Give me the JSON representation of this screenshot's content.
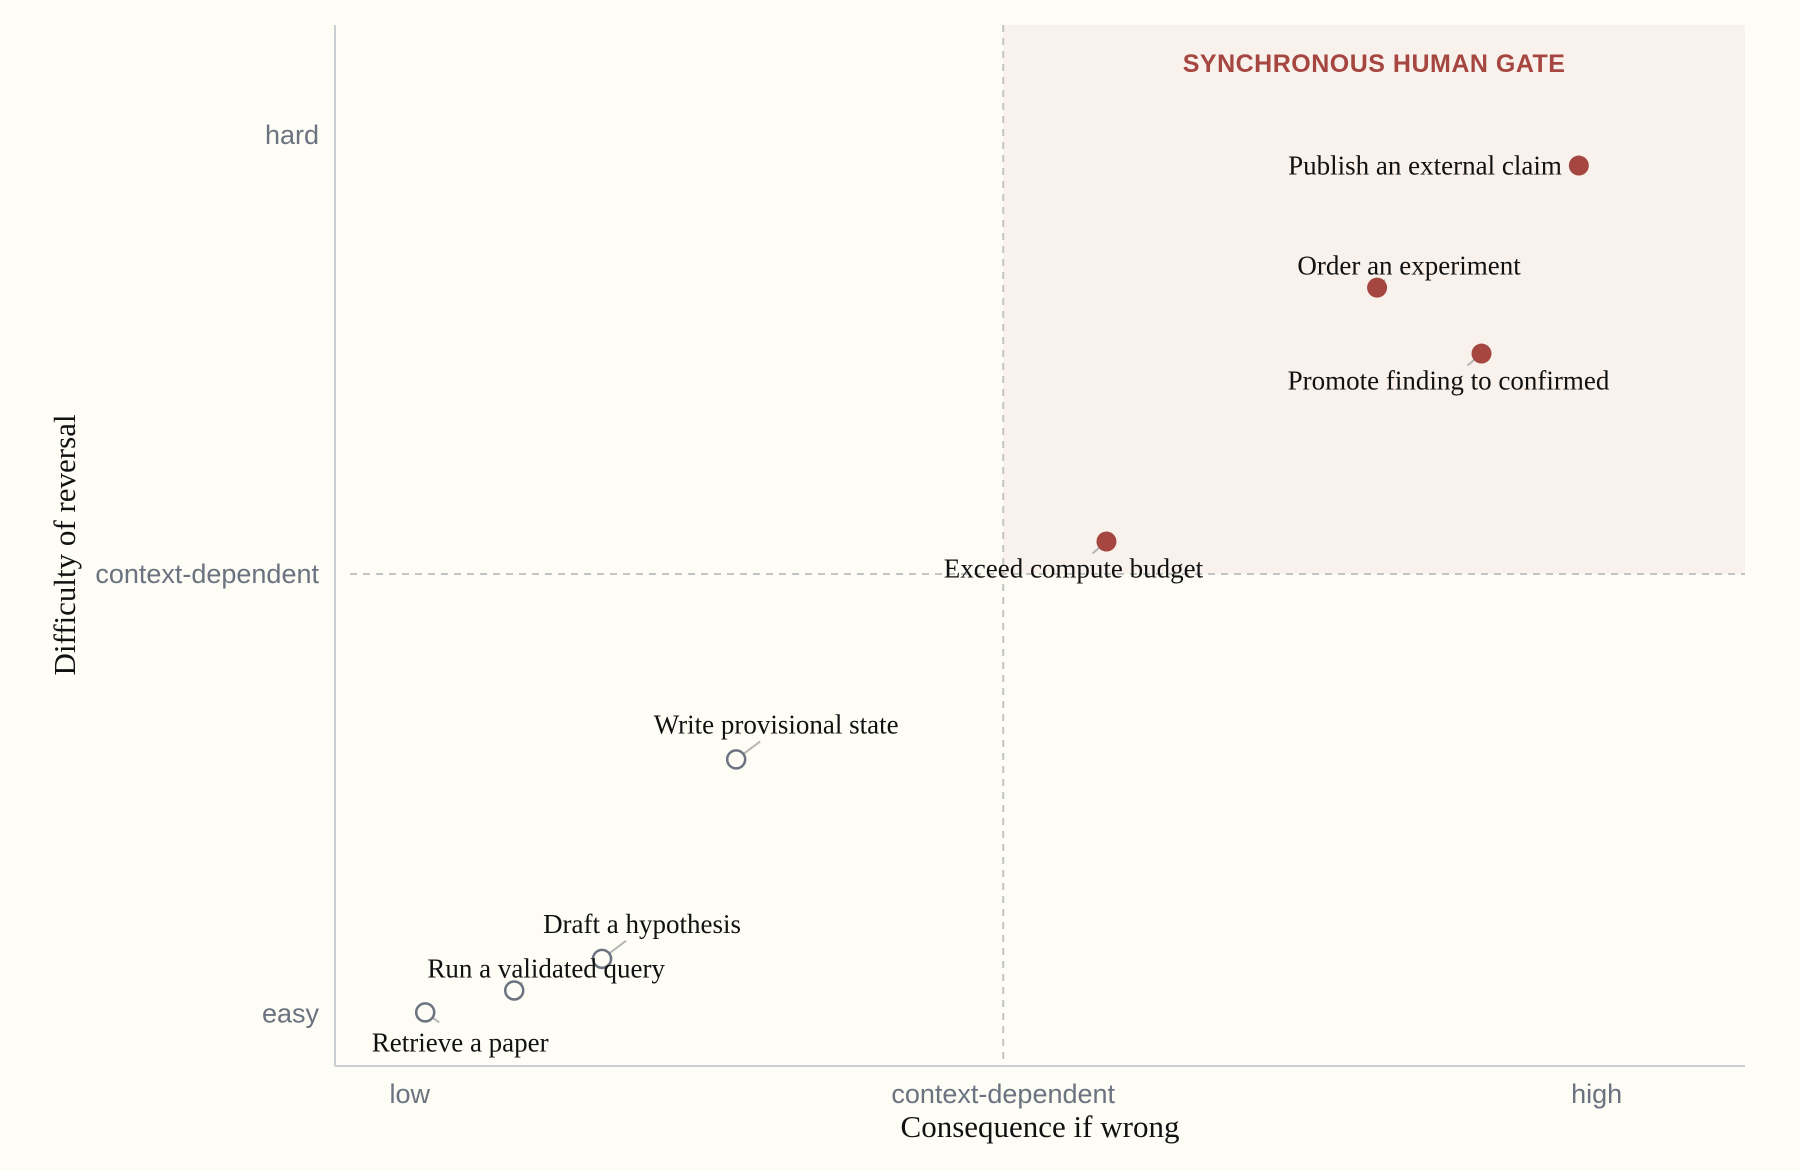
{
  "chart_data": {
    "type": "scatter",
    "title": "",
    "xlabel": "Consequence if wrong",
    "ylabel": "Difficulty of reversal",
    "x_ticks": [
      {
        "value": 0,
        "label": "low"
      },
      {
        "value": 0.5,
        "label": "context-dependent"
      },
      {
        "value": 1,
        "label": "high"
      }
    ],
    "y_ticks": [
      {
        "value": 0,
        "label": "easy"
      },
      {
        "value": 0.5,
        "label": "context-dependent"
      },
      {
        "value": 1,
        "label": "hard"
      }
    ],
    "xlim": [
      -0.063,
      1.125
    ],
    "ylim": [
      -0.06,
      1.125
    ],
    "threshold": {
      "x": 0.5,
      "y": 0.5
    },
    "region": {
      "label": "SYNCHRONOUS HUMAN GATE",
      "x_from": 0.5,
      "y_from": 0.5
    },
    "grid": false,
    "colors": {
      "gated": "#a64640",
      "ungated": "#6b7280",
      "region_fill": "#f8f1ec",
      "region_text": "#a64640",
      "threshold_line": "#c4c4c4",
      "axis_line": "#c9ccd1",
      "leader_line": "#b5b5b5"
    },
    "points": [
      {
        "label": "Retrieve a paper",
        "x": 0.013,
        "y": 0.001,
        "gated": false,
        "label_pos": "below-right"
      },
      {
        "label": "Run a validated query",
        "x": 0.088,
        "y": 0.026,
        "gated": false,
        "label_pos": "above"
      },
      {
        "label": "Draft a hypothesis",
        "x": 0.162,
        "y": 0.062,
        "gated": false,
        "label_pos": "above-right"
      },
      {
        "label": "Write provisional state",
        "x": 0.275,
        "y": 0.289,
        "gated": false,
        "label_pos": "above-right"
      },
      {
        "label": "Exceed compute budget",
        "x": 0.587,
        "y": 0.537,
        "gated": true,
        "label_pos": "below-left"
      },
      {
        "label": "Order an experiment",
        "x": 0.815,
        "y": 0.826,
        "gated": true,
        "label_pos": "above"
      },
      {
        "label": "Promote finding to confirmed",
        "x": 0.903,
        "y": 0.751,
        "gated": true,
        "label_pos": "below-left"
      },
      {
        "label": "Publish an external claim",
        "x": 0.985,
        "y": 0.965,
        "gated": true,
        "label_pos": "left"
      }
    ]
  }
}
